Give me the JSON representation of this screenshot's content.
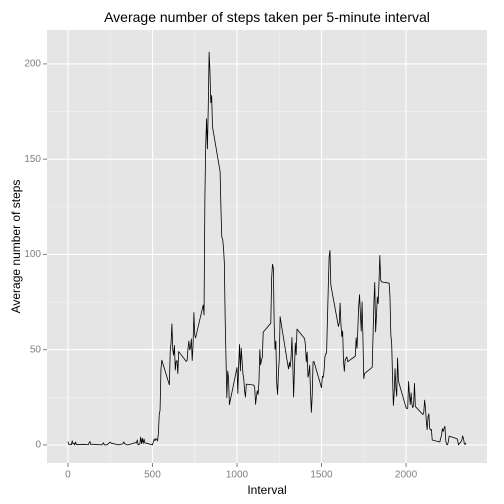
{
  "chart_data": {
    "type": "line",
    "title": "Average number of steps taken per 5-minute interval",
    "x_label": "Interval",
    "y_label": "Average number of steps",
    "xlim": [
      -124,
      2479
    ],
    "xticks": [
      0,
      500,
      1000,
      1500,
      2000
    ],
    "ylim": [
      -9.5,
      217.8
    ],
    "yticks": [
      0,
      50,
      100,
      150,
      200
    ],
    "grid": true,
    "color": "#000000",
    "x": [
      0,
      5,
      10,
      15,
      20,
      25,
      30,
      35,
      40,
      45,
      50,
      55,
      100,
      110,
      120,
      125,
      130,
      135,
      140,
      145,
      150,
      200,
      210,
      215,
      220,
      225,
      230,
      250,
      255,
      300,
      325,
      330,
      335,
      340,
      345,
      350,
      355,
      400,
      405,
      410,
      415,
      420,
      425,
      430,
      435,
      440,
      445,
      450,
      455,
      500,
      505,
      510,
      515,
      520,
      525,
      530,
      535,
      540,
      545,
      550,
      555,
      600,
      605,
      610,
      615,
      620,
      625,
      630,
      635,
      640,
      645,
      650,
      655,
      700,
      705,
      710,
      715,
      720,
      725,
      730,
      735,
      740,
      745,
      750,
      755,
      800,
      805,
      810,
      815,
      820,
      825,
      830,
      835,
      840,
      845,
      850,
      855,
      900,
      905,
      910,
      915,
      920,
      925,
      930,
      935,
      940,
      945,
      950,
      955,
      1000,
      1005,
      1010,
      1015,
      1020,
      1025,
      1030,
      1035,
      1040,
      1045,
      1050,
      1055,
      1100,
      1105,
      1110,
      1115,
      1120,
      1125,
      1130,
      1135,
      1140,
      1145,
      1150,
      1155,
      1200,
      1205,
      1210,
      1215,
      1220,
      1225,
      1230,
      1235,
      1240,
      1245,
      1250,
      1255,
      1300,
      1305,
      1310,
      1315,
      1320,
      1325,
      1330,
      1335,
      1340,
      1345,
      1350,
      1355,
      1400,
      1405,
      1410,
      1415,
      1420,
      1425,
      1430,
      1435,
      1440,
      1445,
      1450,
      1455,
      1500,
      1505,
      1510,
      1515,
      1520,
      1525,
      1530,
      1535,
      1540,
      1545,
      1550,
      1555,
      1600,
      1605,
      1610,
      1615,
      1620,
      1625,
      1630,
      1635,
      1640,
      1645,
      1650,
      1655,
      1700,
      1705,
      1710,
      1715,
      1720,
      1725,
      1730,
      1735,
      1740,
      1745,
      1750,
      1755,
      1800,
      1805,
      1810,
      1815,
      1820,
      1825,
      1830,
      1835,
      1840,
      1845,
      1850,
      1855,
      1900,
      1905,
      1910,
      1915,
      1920,
      1925,
      1930,
      1935,
      1940,
      1945,
      1950,
      1955,
      2000,
      2005,
      2010,
      2015,
      2020,
      2025,
      2030,
      2035,
      2040,
      2045,
      2050,
      2055,
      2100,
      2105,
      2110,
      2115,
      2120,
      2125,
      2130,
      2135,
      2140,
      2145,
      2150,
      2155,
      2200,
      2205,
      2210,
      2215,
      2220,
      2225,
      2230,
      2235,
      2240,
      2245,
      2250,
      2255,
      2300,
      2305,
      2310,
      2315,
      2320,
      2325,
      2330,
      2335,
      2340,
      2345,
      2350,
      2355
    ],
    "values": [
      1.7,
      0.3,
      0.1,
      0.2,
      0.1,
      2.1,
      0.5,
      0.9,
      0,
      1.5,
      0.3,
      0.1,
      0.3,
      0.2,
      0,
      1.1,
      1.8,
      0.2,
      0.2,
      0.4,
      0.3,
      0,
      1.1,
      0,
      0,
      0.1,
      0,
      1.5,
      0.9,
      0,
      0.6,
      1.6,
      0.6,
      0.5,
      0.1,
      0,
      0,
      1.2,
      0.9,
      2.6,
      0,
      0.3,
      0.4,
      4.1,
      0.7,
      3.5,
      0.8,
      3.1,
      1.1,
      0,
      1.6,
      3,
      2.2,
      3.3,
      3,
      2.1,
      6,
      16,
      18.3,
      39.5,
      44.5,
      31.5,
      49.3,
      53.8,
      63.5,
      50,
      47.1,
      52.2,
      39.3,
      44,
      44.2,
      37.4,
      49,
      43.8,
      44.4,
      50.5,
      54.5,
      49.9,
      51,
      55.7,
      44.3,
      52.3,
      69.5,
      57.8,
      56.2,
      73.4,
      68.2,
      129.4,
      157.5,
      171.2,
      155.4,
      177.3,
      206.2,
      195.9,
      179.6,
      183.4,
      167,
      143.5,
      124,
      109.1,
      108.1,
      103.7,
      95.9,
      66.2,
      45.2,
      24.8,
      38.8,
      35,
      21.1,
      40.6,
      27,
      42.4,
      52.7,
      38.9,
      50.8,
      44.3,
      37.4,
      34.7,
      28.3,
      25.1,
      31.9,
      31.4,
      29.7,
      21.3,
      25.5,
      28.4,
      26.5,
      33.4,
      50,
      42,
      44.6,
      46,
      59.2,
      63.9,
      87.7,
      94.8,
      92.8,
      63.4,
      50.2,
      54.5,
      32.4,
      26.5,
      37.7,
      45.1,
      67.3,
      42.3,
      39.9,
      43.3,
      41,
      46.2,
      56.4,
      42.8,
      25.1,
      40,
      53.5,
      47.3,
      60.8,
      55.8,
      52,
      43.6,
      48.7,
      35.5,
      37.5,
      41.8,
      27.5,
      17.1,
      26.1,
      43.6,
      43.8,
      30,
      36.1,
      35.5,
      38.8,
      46,
      47.8,
      48.1,
      65.3,
      82.9,
      98.7,
      102.1,
      84,
      62.1,
      64.1,
      74.5,
      63.2,
      56.9,
      59.8,
      43.9,
      38.6,
      44.7,
      45.5,
      46.2,
      43.7,
      46.6,
      56.3,
      50.7,
      61.2,
      72.7,
      78.9,
      68.9,
      59.7,
      75.1,
      56.5,
      34.8,
      37.5,
      40.7,
      58,
      74.7,
      85.3,
      59.3,
      67.8,
      77.7,
      74.2,
      85.3,
      99.5,
      86.6,
      85.6,
      84.9,
      77.8,
      58,
      53.4,
      36.3,
      20.7,
      27.4,
      40,
      30.2,
      25.5,
      45.7,
      33.5,
      19.6,
      19,
      19.3,
      33.3,
      26.8,
      21.2,
      27.3,
      21.3,
      19.5,
      21.3,
      32.3,
      20.2,
      15.9,
      17.2,
      23.5,
      19.2,
      12.5,
      8,
      14.7,
      16.3,
      8.7,
      7.8,
      8.1,
      2.6,
      1.5,
      3.7,
      4.8,
      8.5,
      7.1,
      8.7,
      9.8,
      2.2,
      0.3,
      0.1,
      1.6,
      4.6,
      3.3,
      2.8,
      0,
      0.8,
      1,
      1.6,
      2.6,
      4.7,
      3.3,
      0.6,
      0.2,
      1.1
    ]
  }
}
